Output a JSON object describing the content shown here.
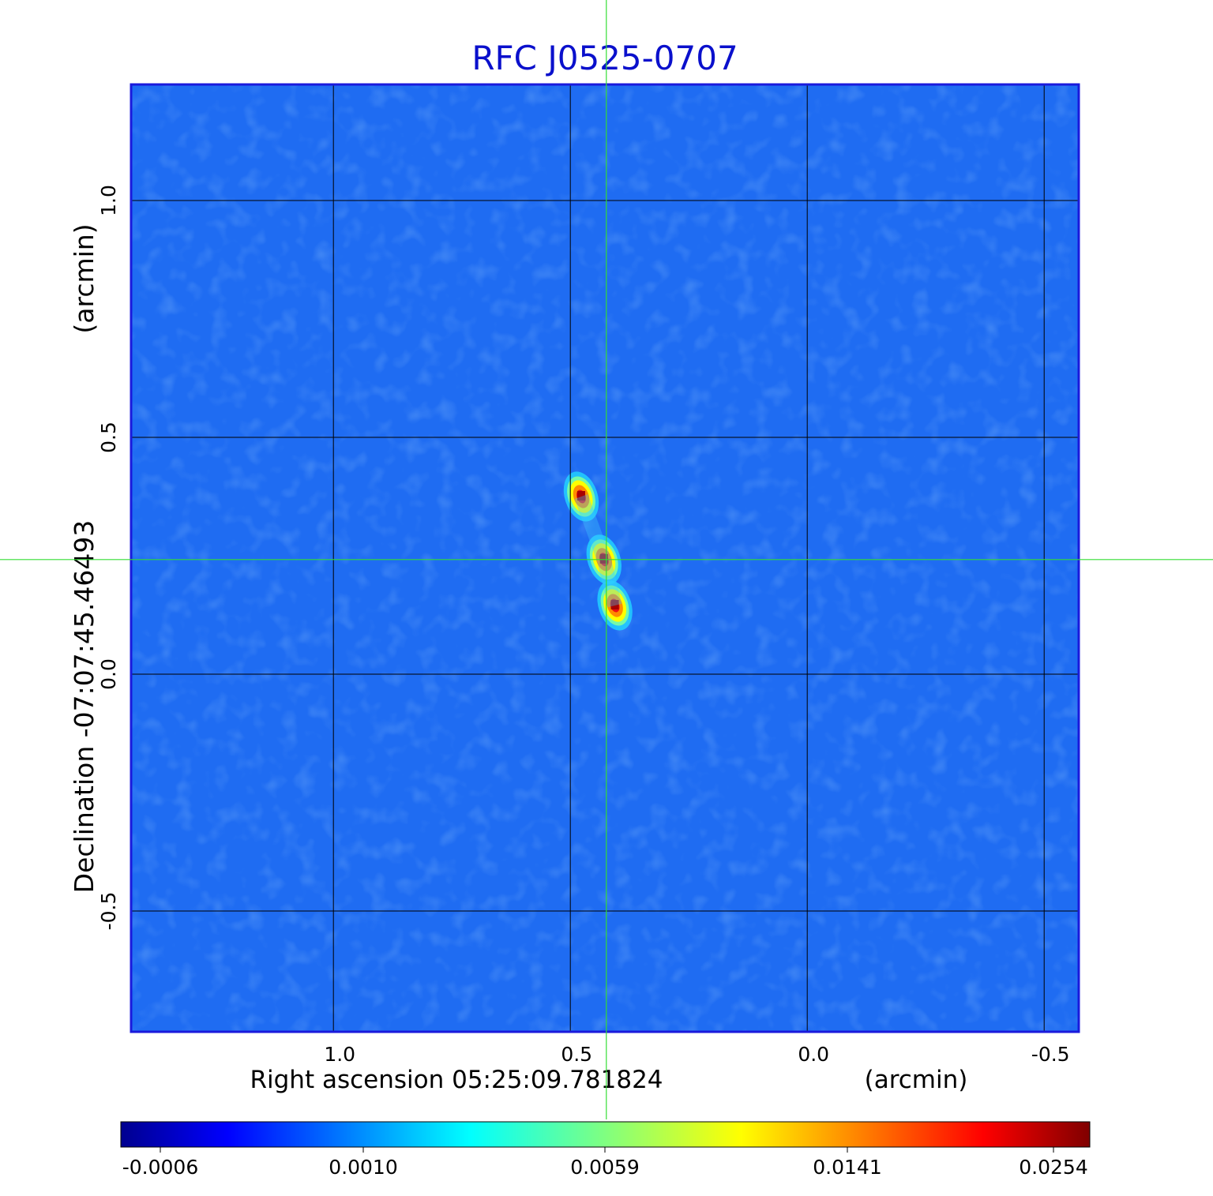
{
  "chart_data": {
    "type": "heatmap",
    "title": "RFC J0525-0707",
    "xlabel": "Right ascension  05:25:09.781824",
    "xunit": "(arcmin)",
    "ylabel": "Declination  -07:07:45.46493",
    "yunit": "(arcmin)",
    "x_ticks": [
      "1.0",
      "0.5",
      "0.0",
      "-0.5"
    ],
    "x_tick_values": [
      1.0,
      0.5,
      0.0,
      -0.5
    ],
    "y_ticks": [
      "1.0",
      "0.5",
      "0.0",
      "-0.5"
    ],
    "y_tick_values": [
      1.0,
      0.5,
      0.0,
      -0.5
    ],
    "xlim": [
      1.427,
      -0.573
    ],
    "ylim": [
      -0.755,
      1.245
    ],
    "grid": true,
    "crosshair": {
      "x": 0.424,
      "y": 0.242
    },
    "colorbar": {
      "colormap": "jet",
      "tick_labels": [
        "-0.0006",
        "0.0010",
        "0.0059",
        "0.0141",
        "0.0254"
      ],
      "tick_values": [
        -0.0006,
        0.001,
        0.0059,
        0.0141,
        0.0254
      ]
    },
    "components": [
      {
        "x": 0.477,
        "y": 0.375,
        "peak": 0.0254
      },
      {
        "x": 0.429,
        "y": 0.242,
        "peak": 0.0254
      },
      {
        "x": 0.406,
        "y": 0.145,
        "peak": 0.0254
      }
    ],
    "noise_level": 0.0002
  },
  "colors": {
    "title": "#0a10cc",
    "axes_frame": "#1a1adc",
    "grid": "#000000",
    "crosshair": "#33dd33"
  }
}
